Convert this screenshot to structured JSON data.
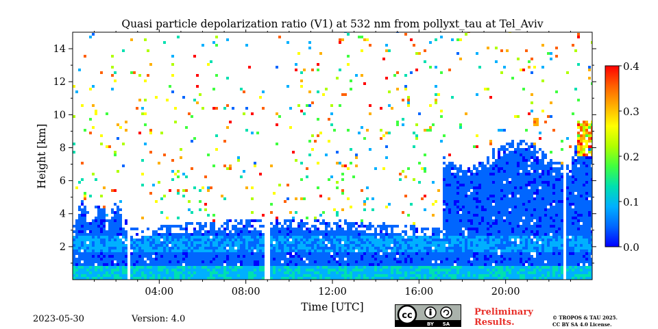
{
  "chart_data": {
    "type": "heatmap",
    "title": "Quasi particle depolarization ratio (V1) at 532 nm from pollyxt_tau at Tel_Aviv",
    "xlabel": "Time [UTC]",
    "ylabel": "Height [km]",
    "xlim_hours": [
      0,
      24
    ],
    "ylim_km": [
      0,
      15
    ],
    "x_ticks": [
      {
        "value": 4,
        "label": "04:00"
      },
      {
        "value": 8,
        "label": "08:00"
      },
      {
        "value": 12,
        "label": "12:00"
      },
      {
        "value": 16,
        "label": "16:00"
      },
      {
        "value": 20,
        "label": "20:00"
      }
    ],
    "y_ticks": [
      {
        "value": 2,
        "label": "2"
      },
      {
        "value": 4,
        "label": "4"
      },
      {
        "value": 6,
        "label": "6"
      },
      {
        "value": 8,
        "label": "8"
      },
      {
        "value": 10,
        "label": "10"
      },
      {
        "value": 12,
        "label": "12"
      },
      {
        "value": 14,
        "label": "14"
      }
    ],
    "colorbar": {
      "min": 0.0,
      "max": 0.4,
      "ticks": [
        {
          "value": 0.0,
          "label": "0.0"
        },
        {
          "value": 0.1,
          "label": "0.1"
        },
        {
          "value": 0.2,
          "label": "0.2"
        },
        {
          "value": 0.3,
          "label": "0.3"
        },
        {
          "value": 0.4,
          "label": "0.4"
        }
      ],
      "colormap": [
        "#0000ff",
        "#0066ff",
        "#00b0ff",
        "#00e0b0",
        "#40ff40",
        "#b0ff00",
        "#ffff00",
        "#ffb000",
        "#ff6000",
        "#ff0000"
      ]
    },
    "data_gaps_hours": [
      2.55,
      8.95,
      22.65
    ],
    "layer_description_km": [
      {
        "time_range_h": [
          0,
          2.5
        ],
        "top_km": 4.5,
        "typical_ratio": 0.05
      },
      {
        "time_range_h": [
          2.7,
          17
        ],
        "top_km": 3.0,
        "typical_ratio": 0.04
      },
      {
        "time_range_h": [
          17,
          24
        ],
        "top_km": 8.0,
        "typical_ratio": 0.03
      },
      {
        "time_range_h": [
          23.2,
          24
        ],
        "top_km": 9.5,
        "typical_ratio": 0.35
      }
    ]
  },
  "footer": {
    "date": "2023-05-30",
    "version": "Version: 4.0",
    "preliminary_line1": "Preliminary",
    "preliminary_line2": "Results.",
    "copyright_line1": "© TROPOS & TAU 2025.",
    "copyright_line2": "CC BY SA 4.0 License.",
    "cc_by": "BY",
    "cc_sa": "SA",
    "colors": {
      "preliminary": "#e8302a"
    }
  }
}
